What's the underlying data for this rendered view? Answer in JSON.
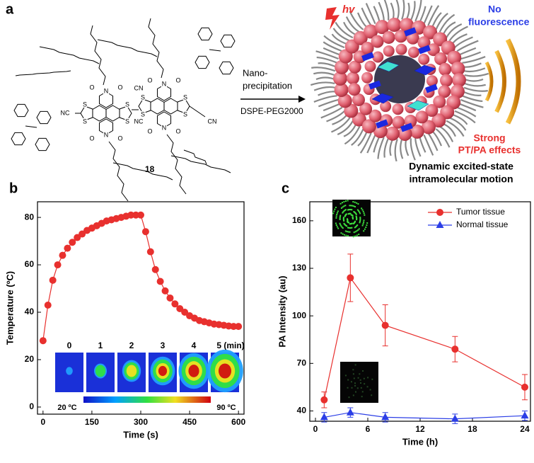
{
  "diagram": {
    "label": "a",
    "hv": "hv",
    "precipitation": [
      "Nano-",
      "precipitation"
    ],
    "reagent": "DSPE-PEG2000",
    "no_fluorescence": [
      "No",
      "fluorescence"
    ],
    "effects": [
      "Strong",
      "PT/PA effects"
    ],
    "motion": [
      "Dynamic excited-state",
      "intramolecular motion"
    ],
    "compound": "18",
    "atoms": [
      "O",
      "N",
      "O",
      "O",
      "N",
      "O",
      "S",
      "S",
      "S",
      "S",
      "O",
      "N",
      "O",
      "O",
      "N",
      "O",
      "S",
      "S",
      "S",
      "S",
      "NC",
      "CN",
      "NC",
      "CN"
    ]
  },
  "chart_data": [
    {
      "type": "line",
      "panel_label": "b",
      "x_label": "Time (s)",
      "y_label": "Temperature (ºC)",
      "color": "#e8302e",
      "marker": "circle",
      "x": [
        0,
        15,
        30,
        45,
        60,
        75,
        90,
        105,
        120,
        135,
        150,
        165,
        180,
        195,
        210,
        225,
        240,
        255,
        270,
        285,
        300,
        315,
        330,
        345,
        360,
        375,
        390,
        405,
        420,
        435,
        450,
        465,
        480,
        495,
        510,
        525,
        540,
        555,
        570,
        585,
        600
      ],
      "values": [
        28,
        43,
        53.5,
        60,
        64,
        67,
        69.5,
        71.5,
        73,
        74.5,
        75.5,
        76.5,
        77.5,
        78.5,
        79,
        79.5,
        80,
        80.5,
        81,
        81,
        81,
        74,
        65.5,
        58,
        53,
        49,
        46,
        43.5,
        41.5,
        40,
        38.5,
        37.5,
        36.5,
        36,
        35.5,
        35,
        34.8,
        34.5,
        34.2,
        34,
        34
      ],
      "xlim": [
        -17,
        617
      ],
      "xticks": [
        0,
        150,
        300,
        450,
        600
      ],
      "ylim": [
        -3,
        86.6
      ],
      "yticks": [
        0,
        20,
        40,
        60,
        80
      ],
      "inset": {
        "labels": [
          "0",
          "1",
          "2",
          "3",
          "4",
          "5 (min)"
        ],
        "colorbar_labels": [
          "20 ºC",
          "90 ºC"
        ]
      }
    },
    {
      "type": "line",
      "panel_label": "c",
      "x_label": "Time (h)",
      "y_label": "PA Intensity (au)",
      "x": [
        1,
        4,
        8,
        16,
        24
      ],
      "series": [
        {
          "name": "Tumor tissue",
          "color": "#e8302e",
          "marker": "circle",
          "values": [
            47,
            124,
            94,
            79,
            55
          ],
          "errors": [
            5,
            15,
            13,
            8,
            8
          ]
        },
        {
          "name": "Normal tissue",
          "color": "#2b3ee6",
          "marker": "triangle",
          "values": [
            36,
            39,
            36,
            35,
            37
          ],
          "errors": [
            3,
            3,
            3,
            3,
            3
          ]
        }
      ],
      "xlim": [
        -0.65,
        24.65
      ],
      "xticks": [
        0,
        6,
        12,
        18,
        24
      ],
      "ylim": [
        33.5,
        172
      ],
      "yticks": [
        40,
        70,
        100,
        130,
        160
      ],
      "legend": "upper right"
    }
  ]
}
